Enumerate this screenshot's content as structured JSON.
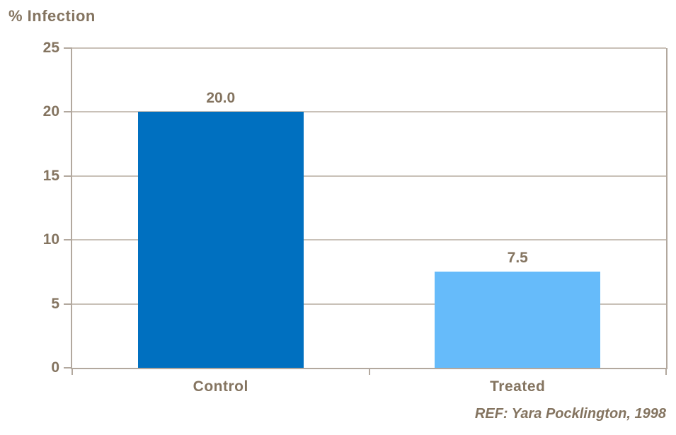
{
  "page_title": "% Infection",
  "chart_data": {
    "type": "bar",
    "title": "% Infection",
    "categories": [
      "Control",
      "Treated"
    ],
    "values": [
      20.0,
      7.5
    ],
    "value_labels": [
      "20.0",
      "7.5"
    ],
    "bar_colors": [
      "#0070C0",
      "#66BBFA"
    ],
    "ylim": [
      0,
      25
    ],
    "yticks": [
      0,
      5,
      10,
      15,
      20,
      25
    ],
    "grid": true,
    "legend": false,
    "xlabel": "",
    "ylabel": "% Infection"
  },
  "footer": {
    "reference": "REF: Yara Pocklington, 1998"
  },
  "colors": {
    "background": "#FFFFFF",
    "text": "#847460",
    "gridline": "#C9C1B8",
    "plot_border": "#B2A89E",
    "bar_control": "#0070C0",
    "bar_treated": "#66BBFA"
  }
}
